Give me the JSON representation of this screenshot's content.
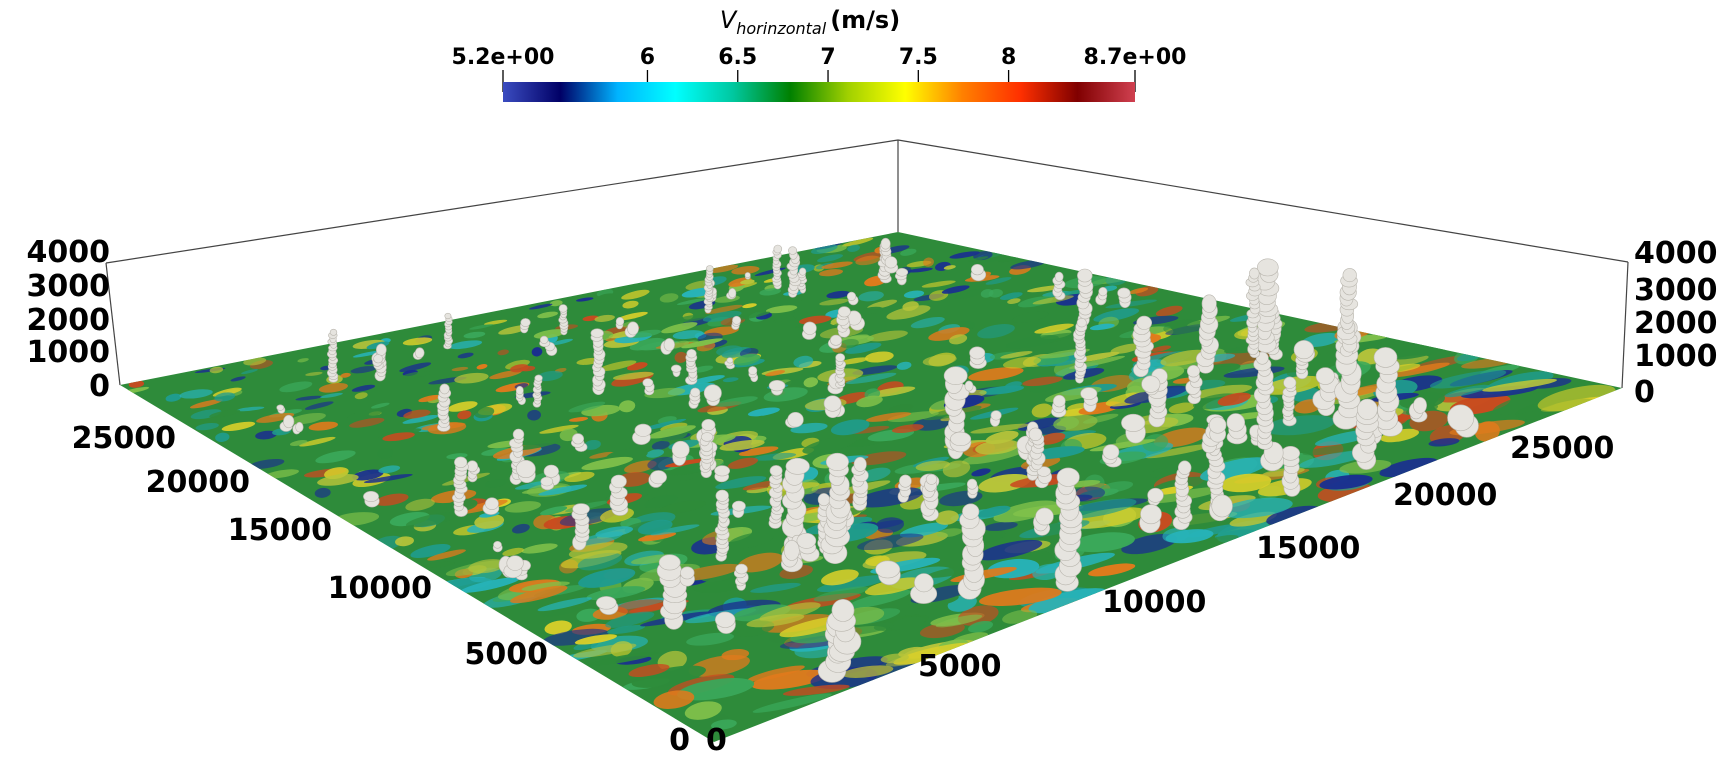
{
  "colorbar": {
    "variable": "V",
    "subscript": "horinzontal",
    "unit": "(m/s)",
    "range": [
      5.2,
      8.7
    ],
    "tick_values": [
      5.2,
      6,
      6.5,
      7,
      7.5,
      8,
      8.7
    ],
    "tick_labels": [
      "5.2e+00",
      "6",
      "6.5",
      "7",
      "7.5",
      "8",
      "8.7e+00"
    ],
    "colormap": [
      "#3b4cc0",
      "#000066",
      "#00b4ff",
      "#00ffff",
      "#00c8a0",
      "#008000",
      "#a0d000",
      "#ffff00",
      "#ff8000",
      "#ff3000",
      "#800000",
      "#d04050"
    ]
  },
  "axes": {
    "z_ticks": [
      "0",
      "1000",
      "2000",
      "3000",
      "4000"
    ],
    "y_ticks": [
      "0",
      "5000",
      "10000",
      "15000",
      "20000",
      "25000"
    ],
    "x_ticks": [
      "0",
      "5000",
      "10000",
      "15000",
      "20000",
      "25000"
    ]
  },
  "surface": {
    "palette": [
      "#2e8b3a",
      "#3aa85a",
      "#d8cf2a",
      "#b8c43a",
      "#27b3b8",
      "#1f9c8e",
      "#e07a1c",
      "#c94a1f",
      "#1a2f8f",
      "#7fc04a"
    ],
    "cloud_color": "#e6e4df"
  }
}
